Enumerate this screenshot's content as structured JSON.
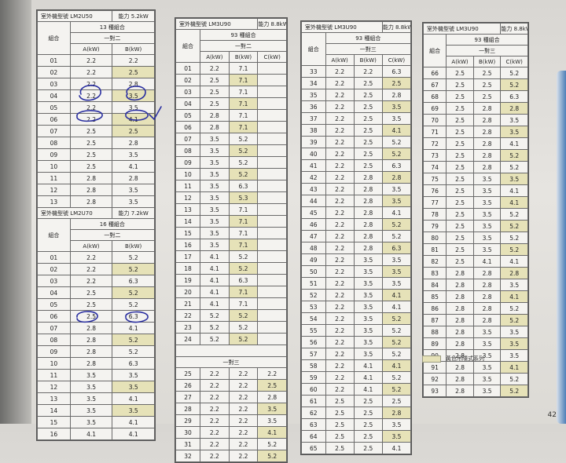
{
  "panel1": {
    "model_label": "室外機型號 LM2U50",
    "capacity_label": "能力 5.2kW",
    "combos_label": "13 種組合",
    "combo_header": "組合",
    "sub_header": "一對二",
    "col_a": "A(kW)",
    "col_b": "B(kW)",
    "rows": [
      {
        "n": "01",
        "a": "2.2",
        "b": "2.2",
        "hl": false
      },
      {
        "n": "02",
        "a": "2.2",
        "b": "2.5",
        "hl": true
      },
      {
        "n": "03",
        "a": "2.2",
        "b": "2.8",
        "hl": false
      },
      {
        "n": "04",
        "a": "2.2",
        "b": "3.5",
        "hl": true
      },
      {
        "n": "05",
        "a": "2.2",
        "b": "3.5",
        "hl": false
      },
      {
        "n": "06",
        "a": "2.2",
        "b": "4.1",
        "hl": true
      },
      {
        "n": "07",
        "a": "2.5",
        "b": "2.5",
        "hl": true
      },
      {
        "n": "08",
        "a": "2.5",
        "b": "2.8",
        "hl": false
      },
      {
        "n": "09",
        "a": "2.5",
        "b": "3.5",
        "hl": false
      },
      {
        "n": "10",
        "a": "2.5",
        "b": "4.1",
        "hl": false
      },
      {
        "n": "11",
        "a": "2.8",
        "b": "2.8",
        "hl": false
      },
      {
        "n": "12",
        "a": "2.8",
        "b": "3.5",
        "hl": false
      },
      {
        "n": "13",
        "a": "2.8",
        "b": "3.5",
        "hl": false
      }
    ]
  },
  "panel2": {
    "model_label": "室外機型號 LM2U70",
    "capacity_label": "能力 7.2kW",
    "combos_label": "16 種組合",
    "combo_header": "組合",
    "sub_header": "一對二",
    "col_a": "A(kW)",
    "col_b": "B(kW)",
    "rows": [
      {
        "n": "01",
        "a": "2.2",
        "b": "5.2",
        "hl": false
      },
      {
        "n": "02",
        "a": "2.2",
        "b": "5.2",
        "hl": true
      },
      {
        "n": "03",
        "a": "2.2",
        "b": "6.3",
        "hl": false
      },
      {
        "n": "04",
        "a": "2.5",
        "b": "5.2",
        "hl": true
      },
      {
        "n": "05",
        "a": "2.5",
        "b": "5.2",
        "hl": false
      },
      {
        "n": "06",
        "a": "2.5",
        "b": "6.3",
        "hl": false
      },
      {
        "n": "07",
        "a": "2.8",
        "b": "4.1",
        "hl": false
      },
      {
        "n": "08",
        "a": "2.8",
        "b": "5.2",
        "hl": true
      },
      {
        "n": "09",
        "a": "2.8",
        "b": "5.2",
        "hl": false
      },
      {
        "n": "10",
        "a": "2.8",
        "b": "6.3",
        "hl": false
      },
      {
        "n": "11",
        "a": "3.5",
        "b": "3.5",
        "hl": false
      },
      {
        "n": "12",
        "a": "3.5",
        "b": "3.5",
        "hl": true
      },
      {
        "n": "13",
        "a": "3.5",
        "b": "4.1",
        "hl": false
      },
      {
        "n": "14",
        "a": "3.5",
        "b": "3.5",
        "hl": true
      },
      {
        "n": "15",
        "a": "3.5",
        "b": "4.1",
        "hl": false
      },
      {
        "n": "16",
        "a": "4.1",
        "b": "4.1",
        "hl": false
      }
    ]
  },
  "panel3": {
    "model_label": "室外機型號 LM3U90",
    "capacity_label": "能力 8.8kW",
    "combos_label": "93 種組合",
    "combo_header": "組合",
    "sub_header_two": "一對二",
    "sub_header_three": "一對三",
    "col_a": "A(kW)",
    "col_b": "B(kW)",
    "col_c": "C(kW)",
    "rows_two": [
      {
        "n": "01",
        "a": "2.2",
        "b": "7.1",
        "hl": false
      },
      {
        "n": "02",
        "a": "2.5",
        "b": "7.1",
        "hl": true
      },
      {
        "n": "03",
        "a": "2.5",
        "b": "7.1",
        "hl": false
      },
      {
        "n": "04",
        "a": "2.5",
        "b": "7.1",
        "hl": true
      },
      {
        "n": "05",
        "a": "2.8",
        "b": "7.1",
        "hl": false
      },
      {
        "n": "06",
        "a": "2.8",
        "b": "7.1",
        "hl": true
      },
      {
        "n": "07",
        "a": "3.5",
        "b": "5.2",
        "hl": false
      },
      {
        "n": "08",
        "a": "3.5",
        "b": "5.2",
        "hl": true
      },
      {
        "n": "09",
        "a": "3.5",
        "b": "5.2",
        "hl": false
      },
      {
        "n": "10",
        "a": "3.5",
        "b": "5.2",
        "hl": true
      },
      {
        "n": "11",
        "a": "3.5",
        "b": "6.3",
        "hl": false
      },
      {
        "n": "12",
        "a": "3.5",
        "b": "5.3",
        "hl": true
      },
      {
        "n": "13",
        "a": "3.5",
        "b": "7.1",
        "hl": false
      },
      {
        "n": "14",
        "a": "3.5",
        "b": "7.1",
        "hl": true
      },
      {
        "n": "15",
        "a": "3.5",
        "b": "7.1",
        "hl": false
      },
      {
        "n": "16",
        "a": "3.5",
        "b": "7.1",
        "hl": true
      },
      {
        "n": "17",
        "a": "4.1",
        "b": "5.2",
        "hl": false
      },
      {
        "n": "18",
        "a": "4.1",
        "b": "5.2",
        "hl": true
      },
      {
        "n": "19",
        "a": "4.1",
        "b": "6.3",
        "hl": false
      },
      {
        "n": "20",
        "a": "4.1",
        "b": "7.1",
        "hl": true
      },
      {
        "n": "21",
        "a": "4.1",
        "b": "7.1",
        "hl": false
      },
      {
        "n": "22",
        "a": "5.2",
        "b": "5.2",
        "hl": true
      },
      {
        "n": "23",
        "a": "5.2",
        "b": "5.2",
        "hl": false
      },
      {
        "n": "24",
        "a": "5.2",
        "b": "5.2",
        "hl": true
      }
    ],
    "rows_three": [
      {
        "n": "25",
        "a": "2.2",
        "b": "2.2",
        "c": "2.2",
        "hl": false
      },
      {
        "n": "26",
        "a": "2.2",
        "b": "2.2",
        "c": "2.5",
        "hl": true
      },
      {
        "n": "27",
        "a": "2.2",
        "b": "2.2",
        "c": "2.8",
        "hl": false
      },
      {
        "n": "28",
        "a": "2.2",
        "b": "2.2",
        "c": "3.5",
        "hl": true
      },
      {
        "n": "29",
        "a": "2.2",
        "b": "2.2",
        "c": "3.5",
        "hl": false
      },
      {
        "n": "30",
        "a": "2.2",
        "b": "2.2",
        "c": "4.1",
        "hl": true
      },
      {
        "n": "31",
        "a": "2.2",
        "b": "2.2",
        "c": "5.2",
        "hl": false
      },
      {
        "n": "32",
        "a": "2.2",
        "b": "2.2",
        "c": "5.2",
        "hl": true
      }
    ]
  },
  "panel4": {
    "model_label": "室外機型號 LM3U90",
    "capacity_label": "能力 8.8kW",
    "combos_label": "93 種組合",
    "combo_header": "組合",
    "sub_header": "一對三",
    "col_a": "A(kW)",
    "col_b": "B(kW)",
    "col_c": "C(kW)",
    "rows": [
      {
        "n": "33",
        "a": "2.2",
        "b": "2.2",
        "c": "6.3",
        "hl": false
      },
      {
        "n": "34",
        "a": "2.2",
        "b": "2.5",
        "c": "2.5",
        "hl": true
      },
      {
        "n": "35",
        "a": "2.2",
        "b": "2.5",
        "c": "2.8",
        "hl": false
      },
      {
        "n": "36",
        "a": "2.2",
        "b": "2.5",
        "c": "3.5",
        "hl": true
      },
      {
        "n": "37",
        "a": "2.2",
        "b": "2.5",
        "c": "3.5",
        "hl": false
      },
      {
        "n": "38",
        "a": "2.2",
        "b": "2.5",
        "c": "4.1",
        "hl": true
      },
      {
        "n": "39",
        "a": "2.2",
        "b": "2.5",
        "c": "5.2",
        "hl": false
      },
      {
        "n": "40",
        "a": "2.2",
        "b": "2.5",
        "c": "5.2",
        "hl": true
      },
      {
        "n": "41",
        "a": "2.2",
        "b": "2.5",
        "c": "6.3",
        "hl": false
      },
      {
        "n": "42",
        "a": "2.2",
        "b": "2.8",
        "c": "2.8",
        "hl": true
      },
      {
        "n": "43",
        "a": "2.2",
        "b": "2.8",
        "c": "3.5",
        "hl": false
      },
      {
        "n": "44",
        "a": "2.2",
        "b": "2.8",
        "c": "3.5",
        "hl": true
      },
      {
        "n": "45",
        "a": "2.2",
        "b": "2.8",
        "c": "4.1",
        "hl": false
      },
      {
        "n": "46",
        "a": "2.2",
        "b": "2.8",
        "c": "5.2",
        "hl": true
      },
      {
        "n": "47",
        "a": "2.2",
        "b": "2.8",
        "c": "5.2",
        "hl": false
      },
      {
        "n": "48",
        "a": "2.2",
        "b": "2.8",
        "c": "6.3",
        "hl": true
      },
      {
        "n": "49",
        "a": "2.2",
        "b": "3.5",
        "c": "3.5",
        "hl": false
      },
      {
        "n": "50",
        "a": "2.2",
        "b": "3.5",
        "c": "3.5",
        "hl": true
      },
      {
        "n": "51",
        "a": "2.2",
        "b": "3.5",
        "c": "3.5",
        "hl": false
      },
      {
        "n": "52",
        "a": "2.2",
        "b": "3.5",
        "c": "4.1",
        "hl": true
      },
      {
        "n": "53",
        "a": "2.2",
        "b": "3.5",
        "c": "4.1",
        "hl": false
      },
      {
        "n": "54",
        "a": "2.2",
        "b": "3.5",
        "c": "5.2",
        "hl": true
      },
      {
        "n": "55",
        "a": "2.2",
        "b": "3.5",
        "c": "5.2",
        "hl": false
      },
      {
        "n": "56",
        "a": "2.2",
        "b": "3.5",
        "c": "5.2",
        "hl": true
      },
      {
        "n": "57",
        "a": "2.2",
        "b": "3.5",
        "c": "5.2",
        "hl": false
      },
      {
        "n": "58",
        "a": "2.2",
        "b": "4.1",
        "c": "4.1",
        "hl": true
      },
      {
        "n": "59",
        "a": "2.2",
        "b": "4.1",
        "c": "5.2",
        "hl": false
      },
      {
        "n": "60",
        "a": "2.2",
        "b": "4.1",
        "c": "5.2",
        "hl": true
      },
      {
        "n": "61",
        "a": "2.5",
        "b": "2.5",
        "c": "2.5",
        "hl": false
      },
      {
        "n": "62",
        "a": "2.5",
        "b": "2.5",
        "c": "2.8",
        "hl": true
      },
      {
        "n": "63",
        "a": "2.5",
        "b": "2.5",
        "c": "3.5",
        "hl": false
      },
      {
        "n": "64",
        "a": "2.5",
        "b": "2.5",
        "c": "3.5",
        "hl": true
      },
      {
        "n": "65",
        "a": "2.5",
        "b": "2.5",
        "c": "4.1",
        "hl": false
      }
    ]
  },
  "panel5": {
    "model_label": "室外機型號 LM3U90",
    "capacity_label": "能力 8.8kW",
    "combos_label": "93 種組合",
    "combo_header": "組合",
    "sub_header": "一對三",
    "col_a": "A(kW)",
    "col_b": "B(kW)",
    "col_c": "C(kW)",
    "rows": [
      {
        "n": "66",
        "a": "2.5",
        "b": "2.5",
        "c": "5.2",
        "hl": false
      },
      {
        "n": "67",
        "a": "2.5",
        "b": "2.5",
        "c": "5.2",
        "hl": true
      },
      {
        "n": "68",
        "a": "2.5",
        "b": "2.5",
        "c": "6.3",
        "hl": false
      },
      {
        "n": "69",
        "a": "2.5",
        "b": "2.8",
        "c": "2.8",
        "hl": true
      },
      {
        "n": "70",
        "a": "2.5",
        "b": "2.8",
        "c": "3.5",
        "hl": false
      },
      {
        "n": "71",
        "a": "2.5",
        "b": "2.8",
        "c": "3.5",
        "hl": true
      },
      {
        "n": "72",
        "a": "2.5",
        "b": "2.8",
        "c": "4.1",
        "hl": false
      },
      {
        "n": "73",
        "a": "2.5",
        "b": "2.8",
        "c": "5.2",
        "hl": true
      },
      {
        "n": "74",
        "a": "2.5",
        "b": "2.8",
        "c": "5.2",
        "hl": false
      },
      {
        "n": "75",
        "a": "2.5",
        "b": "3.5",
        "c": "3.5",
        "hl": true
      },
      {
        "n": "76",
        "a": "2.5",
        "b": "3.5",
        "c": "4.1",
        "hl": false
      },
      {
        "n": "77",
        "a": "2.5",
        "b": "3.5",
        "c": "4.1",
        "hl": true
      },
      {
        "n": "78",
        "a": "2.5",
        "b": "3.5",
        "c": "5.2",
        "hl": false
      },
      {
        "n": "79",
        "a": "2.5",
        "b": "3.5",
        "c": "5.2",
        "hl": true
      },
      {
        "n": "80",
        "a": "2.5",
        "b": "3.5",
        "c": "5.2",
        "hl": false
      },
      {
        "n": "81",
        "a": "2.5",
        "b": "3.5",
        "c": "5.2",
        "hl": true
      },
      {
        "n": "82",
        "a": "2.5",
        "b": "4.1",
        "c": "4.1",
        "hl": false
      },
      {
        "n": "83",
        "a": "2.8",
        "b": "2.8",
        "c": "2.8",
        "hl": true
      },
      {
        "n": "84",
        "a": "2.8",
        "b": "2.8",
        "c": "3.5",
        "hl": false
      },
      {
        "n": "85",
        "a": "2.8",
        "b": "2.8",
        "c": "4.1",
        "hl": true
      },
      {
        "n": "86",
        "a": "2.8",
        "b": "2.8",
        "c": "5.2",
        "hl": false
      },
      {
        "n": "87",
        "a": "2.8",
        "b": "2.8",
        "c": "5.2",
        "hl": true
      },
      {
        "n": "88",
        "a": "2.8",
        "b": "3.5",
        "c": "3.5",
        "hl": false
      },
      {
        "n": "89",
        "a": "2.8",
        "b": "3.5",
        "c": "3.5",
        "hl": true
      },
      {
        "n": "90",
        "a": "2.8",
        "b": "3.5",
        "c": "3.5",
        "hl": false
      },
      {
        "n": "91",
        "a": "2.8",
        "b": "3.5",
        "c": "4.1",
        "hl": true
      },
      {
        "n": "92",
        "a": "2.8",
        "b": "3.5",
        "c": "5.2",
        "hl": false
      },
      {
        "n": "93",
        "a": "2.8",
        "b": "3.5",
        "c": "5.2",
        "hl": true
      }
    ]
  },
  "legend": {
    "text": "黃色吊隱式系列",
    "color": "#e6e2b8"
  },
  "page_number": "42",
  "annotations": {
    "check_mark": "✓",
    "color": "#2a2fa0"
  }
}
